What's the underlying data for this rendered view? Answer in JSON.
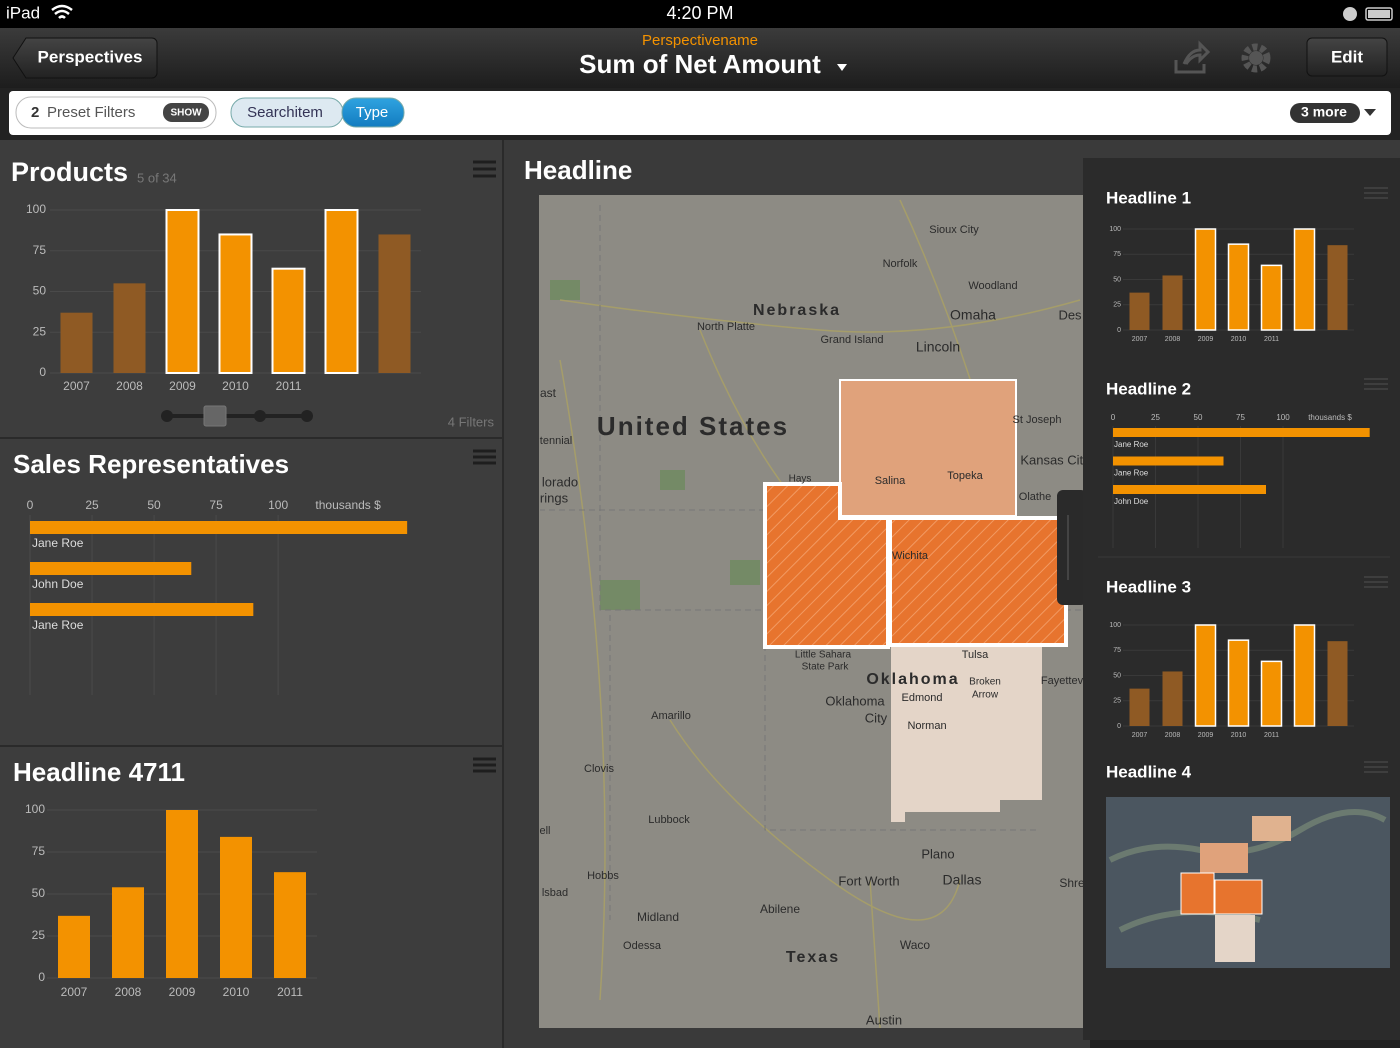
{
  "status_bar": {
    "carrier": "iPad",
    "time": "4:20 PM"
  },
  "nav_bar": {
    "back": "Perspectives",
    "subtitle": "Perspectivename",
    "title": "Sum of Net Amount",
    "edit": "Edit"
  },
  "filter_bar": {
    "preset_count": "2",
    "preset_label": "Preset Filters",
    "show": "SHOW",
    "segments": [
      "Searchitem",
      "Type"
    ],
    "selected_segment": 1,
    "more": "3 more"
  },
  "products": {
    "title": "Products",
    "subtitle": "5 of 34",
    "filters": "4 Filters",
    "chart_data": {
      "type": "bar",
      "categories": [
        "2007",
        "2008",
        "2009",
        "2010",
        "2011",
        null,
        null
      ],
      "values": [
        37,
        55,
        100,
        85,
        64,
        100,
        85
      ],
      "colors": [
        "#8f5a24",
        "#8f5a24",
        "#f39200",
        "#f39200",
        "#f39200",
        "#f39200",
        "#8f5a24"
      ],
      "highlighted": [
        false,
        false,
        true,
        true,
        true,
        true,
        false
      ],
      "ylim": [
        0,
        100
      ],
      "yticks": [
        0,
        25,
        50,
        75,
        100
      ],
      "grid": true
    }
  },
  "sales_representatives": {
    "title": "Sales Representatives",
    "chart_data": {
      "type": "hbar",
      "categories": [
        "Jane Roe",
        "John Doe",
        "Jane Roe"
      ],
      "values": [
        152,
        65,
        90
      ],
      "color": "#f39200",
      "xlim": [
        0,
        160
      ],
      "xticks": [
        0,
        25,
        50,
        75,
        100
      ],
      "unit": "thousands $",
      "grid": true
    }
  },
  "headline_4711": {
    "title": "Headline 4711",
    "chart_data": {
      "type": "bar",
      "categories": [
        "2007",
        "2008",
        "2009",
        "2010",
        "2011"
      ],
      "values": [
        37,
        54,
        100,
        84,
        63
      ],
      "colors": [
        "#f39200",
        "#f39200",
        "#f39200",
        "#f39200",
        "#f39200"
      ],
      "highlighted": [
        false,
        false,
        false,
        false,
        false
      ],
      "ylim": [
        0,
        100
      ],
      "yticks": [
        0,
        25,
        50,
        75,
        100
      ],
      "grid": true
    }
  },
  "map": {
    "title": "Headline",
    "labels": [
      "Sioux City",
      "Norfolk",
      "Woodland",
      "Nebraska",
      "Omaha",
      "Des",
      "North Platte",
      "Grand Island",
      "Lincoln",
      "United States",
      "St Joseph",
      "Kansas City",
      "Hays",
      "Salina",
      "Topeka",
      "Olathe",
      "Wichita",
      "Little Sahara",
      "State Park",
      "Tulsa",
      "Oklahoma",
      "Edmond",
      "Broken",
      "Arrow",
      "Fayettev",
      "Oklahoma",
      "City",
      "Norman",
      "Amarillo",
      "Clovis",
      "Lubbock",
      "Hobbs",
      "Plano",
      "Fort Worth",
      "Dallas",
      "Shre",
      "Abilene",
      "Midland",
      "Odessa",
      "Waco",
      "Texas",
      "Austin",
      "ast",
      "tennial",
      "lorado",
      "rings",
      "ell",
      "lsbad"
    ]
  },
  "side_panel": {
    "headline_1": {
      "title": "Headline 1",
      "chart_data": {
        "type": "bar",
        "categories": [
          "2007",
          "2008",
          "2009",
          "2010",
          "2011",
          null,
          null
        ],
        "values": [
          37,
          54,
          100,
          85,
          64,
          100,
          84
        ],
        "colors": [
          "#8f5a24",
          "#8f5a24",
          "#f39200",
          "#f39200",
          "#f39200",
          "#f39200",
          "#8f5a24"
        ],
        "highlighted": [
          false,
          false,
          true,
          true,
          true,
          true,
          false
        ],
        "ylim": [
          0,
          100
        ],
        "yticks": [
          0,
          25,
          50,
          75,
          100
        ],
        "grid": true
      }
    },
    "headline_2": {
      "title": "Headline 2",
      "chart_data": {
        "type": "hbar",
        "categories": [
          "Jane Roe",
          "Jane Roe",
          "John Doe"
        ],
        "values": [
          151,
          65,
          90
        ],
        "color": "#f39200",
        "xlim": [
          0,
          160
        ],
        "xticks": [
          0,
          25,
          50,
          75,
          100
        ],
        "unit": "thousands $",
        "grid": true
      }
    },
    "headline_3": {
      "title": "Headline 3",
      "chart_data": {
        "type": "bar",
        "categories": [
          "2007",
          "2008",
          "2009",
          "2010",
          "2011",
          null,
          null
        ],
        "values": [
          37,
          54,
          100,
          85,
          64,
          100,
          84
        ],
        "colors": [
          "#8f5a24",
          "#8f5a24",
          "#f39200",
          "#f39200",
          "#f39200",
          "#f39200",
          "#8f5a24"
        ],
        "highlighted": [
          false,
          false,
          true,
          true,
          true,
          true,
          false
        ],
        "ylim": [
          0,
          100
        ],
        "yticks": [
          0,
          25,
          50,
          75,
          100
        ],
        "grid": true
      }
    },
    "headline_4": {
      "title": "Headline 4"
    }
  }
}
